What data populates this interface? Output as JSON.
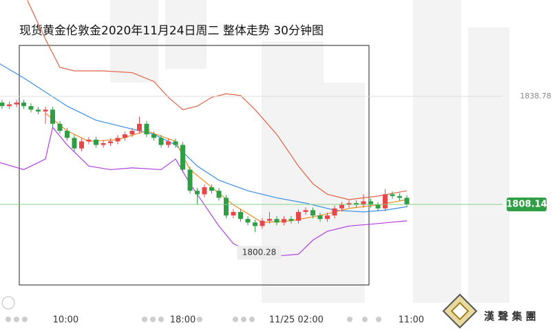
{
  "chart_data": {
    "type": "candlestick",
    "title": "现货黄金伦敦金2020年11月24日周二 整体走势  30分钟图",
    "open": [
      1837,
      1836,
      1836.5,
      1837,
      1836,
      1835,
      1834.5,
      1835,
      1831,
      1829,
      1827,
      1824,
      1826,
      1826.5,
      1825,
      1825.5,
      1826,
      1827,
      1828,
      1829,
      1831,
      1828,
      1827,
      1825,
      1826,
      1825,
      1818,
      1812,
      1811,
      1813,
      1812,
      1810,
      1805,
      1806,
      1804,
      1803,
      1802,
      1803.5,
      1804,
      1803,
      1804,
      1803.5,
      1806,
      1806.5,
      1805,
      1804,
      1805,
      1807,
      1808,
      1808.5,
      1808,
      1809,
      1808,
      1807,
      1811,
      1810.5,
      1810
    ],
    "high": [
      1837.8,
      1837.3,
      1837.8,
      1837.8,
      1836.8,
      1835.8,
      1835.8,
      1835.8,
      1831.8,
      1829.8,
      1827.8,
      1826.8,
      1827.3,
      1827.3,
      1826.3,
      1826.8,
      1827.8,
      1828.8,
      1829.8,
      1833,
      1831.8,
      1828.8,
      1827.8,
      1826.8,
      1826.8,
      1825.8,
      1818.8,
      1812.8,
      1813.8,
      1813.8,
      1812.8,
      1810.8,
      1806.8,
      1806.8,
      1804.8,
      1803.8,
      1804.3,
      1806,
      1804.8,
      1804.8,
      1804.8,
      1806.8,
      1807.3,
      1807.3,
      1805.8,
      1805.8,
      1807.8,
      1808.8,
      1809.3,
      1809.3,
      1811,
      1809.8,
      1808.8,
      1812.5,
      1811.8,
      1811.3,
      1810.8
    ],
    "low": [
      1835.2,
      1835.2,
      1835.7,
      1835.2,
      1834.2,
      1833.7,
      1831,
      1830.2,
      1828.2,
      1826.2,
      1823.2,
      1823.2,
      1825.2,
      1824.2,
      1824.2,
      1824.7,
      1825.2,
      1826.2,
      1827.2,
      1828.2,
      1827.2,
      1826.2,
      1824.2,
      1824.2,
      1824.2,
      1817.2,
      1811.2,
      1808,
      1810.2,
      1811.2,
      1809.2,
      1804.2,
      1804.2,
      1803.2,
      1802.2,
      1800.28,
      1801.2,
      1802.7,
      1802.2,
      1802.2,
      1802.7,
      1802.7,
      1805.2,
      1804.2,
      1803.2,
      1803.2,
      1804.2,
      1806.2,
      1807.2,
      1807.2,
      1807.2,
      1807.2,
      1806.2,
      1806.2,
      1809.7,
      1809.2,
      1807.3
    ],
    "close": [
      1836,
      1836.5,
      1837,
      1836,
      1835,
      1834.5,
      1835,
      1831,
      1829,
      1827,
      1824,
      1826,
      1826.5,
      1825,
      1825.5,
      1826,
      1827,
      1828,
      1829,
      1831,
      1828,
      1827,
      1825,
      1826,
      1825,
      1818,
      1812,
      1811,
      1813,
      1812,
      1810,
      1805,
      1806,
      1804,
      1803,
      1802,
      1803.5,
      1804,
      1803,
      1804,
      1803.5,
      1806,
      1806.5,
      1805,
      1804,
      1805,
      1807,
      1808,
      1808.5,
      1808,
      1809,
      1808,
      1807,
      1811,
      1810.5,
      1810,
      1808.14
    ],
    "up_color": "#e8474a",
    "down_color": "#2f9e44",
    "lines": [
      {
        "color": "#e06040",
        "x": [
          3.5,
          6,
          8,
          10,
          14,
          18,
          21,
          23,
          25,
          27,
          29,
          31,
          33,
          35,
          38,
          41,
          43,
          45,
          48,
          52,
          56
        ],
        "values": [
          1866,
          1855,
          1847,
          1846,
          1846,
          1845.5,
          1843,
          1838.5,
          1835,
          1836,
          1838.5,
          1839.5,
          1839,
          1835,
          1828,
          1819,
          1814,
          1811,
          1809.5,
          1810.5,
          1812
        ]
      },
      {
        "color": "#3a8ee6",
        "x": [
          -0.3,
          3,
          6,
          9,
          13,
          17,
          21,
          24,
          27,
          30,
          34,
          38,
          42,
          46,
          50,
          53,
          56
        ],
        "values": [
          1848,
          1844,
          1840,
          1836,
          1832,
          1830,
          1828,
          1825,
          1819,
          1815,
          1812,
          1810,
          1808.5,
          1806.5,
          1806,
          1806.5,
          1807.5
        ]
      },
      {
        "color": "#b040e0",
        "x": [
          -0.3,
          3,
          6,
          7,
          9,
          12,
          15,
          18,
          22,
          24,
          26,
          28,
          30,
          32,
          35,
          38,
          41,
          43,
          45,
          48,
          52,
          56
        ],
        "values": [
          1820,
          1818,
          1821,
          1830,
          1825,
          1819,
          1818,
          1818.5,
          1818,
          1821,
          1814,
          1808,
          1802,
          1797,
          1794,
          1793.5,
          1794,
          1798,
          1800.5,
          1802,
          1802.7,
          1803.5
        ]
      },
      {
        "color": "#f08a20",
        "x": [
          6,
          9,
          12,
          16,
          20,
          24,
          26,
          29,
          32,
          36,
          40,
          44,
          48,
          52,
          56
        ],
        "values": [
          1834,
          1829,
          1826,
          1826.5,
          1829,
          1826,
          1818,
          1813,
          1808,
          1803,
          1803.5,
          1805,
          1807,
          1808,
          1809.5
        ]
      }
    ],
    "xlim": [
      -0.2857,
      69.238
    ],
    "xticks": [
      {
        "value": 8.8,
        "label": "10:00"
      },
      {
        "value": 25,
        "label": "18:00"
      },
      {
        "value": 40.7,
        "label": "11/25 02:00"
      },
      {
        "value": 56.6,
        "label": "11:00"
      }
    ],
    "ylim": [
      1772.8,
      1866.1
    ],
    "yticks": [
      1838.78
    ],
    "watermark": "漢 聲 集 團"
  }
}
